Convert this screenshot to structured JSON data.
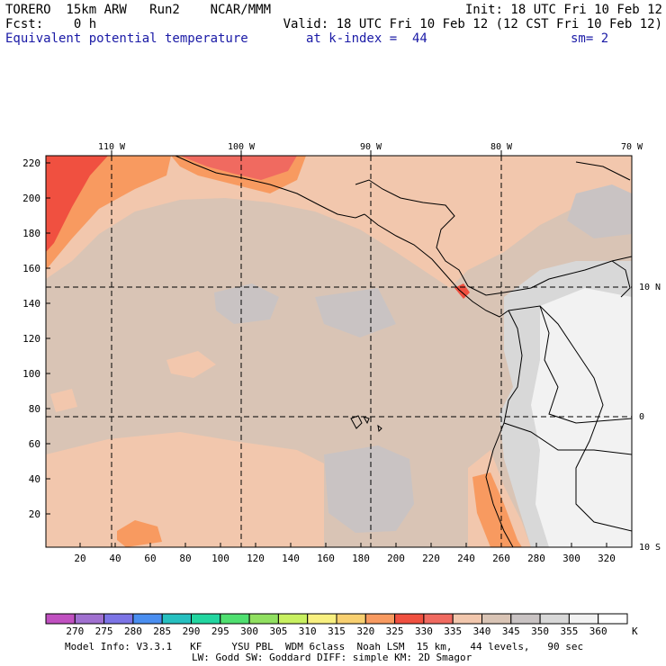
{
  "header": {
    "left_line1": "TORERO  15km ARW   Run2    NCAR/MMM",
    "left_line2": "Fcst:    0 h",
    "init": "Init: 18 UTC Fri 10 Feb 12",
    "valid": "Valid: 18 UTC Fri 10 Feb 12 (12 CST Fri 10 Feb 12)",
    "field_name": "Equivalent potential temperature",
    "level": "at k-index =  44",
    "smoothing": "sm= 2"
  },
  "map": {
    "longitude_labels": [
      "110 W",
      "100 W",
      "90 W",
      "80 W",
      "70 W"
    ],
    "latitude_labels": [
      "10 N",
      "0",
      "10 S"
    ],
    "y_grid_labels": [
      "220",
      "200",
      "180",
      "160",
      "140",
      "120",
      "100",
      "80",
      "60",
      "40",
      "20"
    ],
    "x_grid_labels": [
      "20",
      "40",
      "60",
      "80",
      "100",
      "120",
      "140",
      "160",
      "180",
      "200",
      "220",
      "240",
      "260",
      "280",
      "300",
      "320"
    ]
  },
  "colorbar": {
    "levels": [
      "270",
      "275",
      "280",
      "285",
      "290",
      "295",
      "300",
      "305",
      "310",
      "315",
      "320",
      "325",
      "330",
      "335",
      "340",
      "345",
      "350",
      "355",
      "360"
    ],
    "unit": "K",
    "colors": [
      "#c050c0",
      "#a070d0",
      "#7c74e6",
      "#4a8ef0",
      "#26c0c0",
      "#22d6a0",
      "#4fe070",
      "#90e060",
      "#c8f060",
      "#f8f080",
      "#f8d070",
      "#f89a60",
      "#f05040",
      "#f06a60",
      "#f2c7ad",
      "#d9c4b5",
      "#c9c3c3",
      "#d8d8d8",
      "#f2f2f2",
      "#ffffff"
    ]
  },
  "footer": {
    "line1": "Model Info: V3.3.1   KF     YSU PBL  WDM 6class  Noah LSM  15 km,   44 levels,   90 sec",
    "line2": "LW: Godd SW: Goddard DIFF: simple KM: 2D Smagor"
  }
}
